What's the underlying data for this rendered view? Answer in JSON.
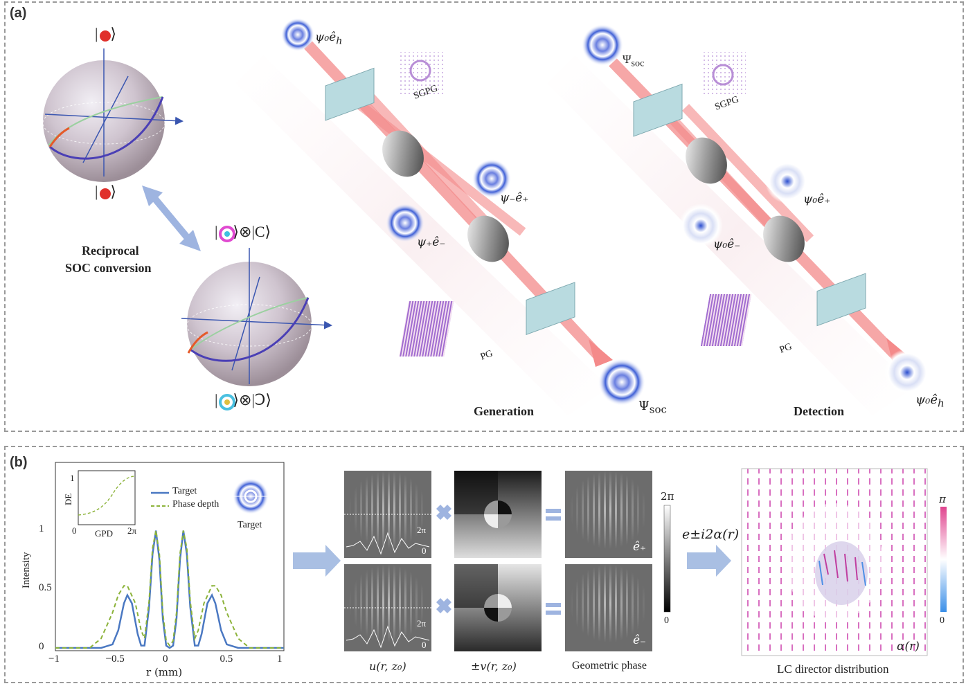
{
  "panel_a": {
    "label": "(a)",
    "ket_top": "|",
    "ket_bottom": "|",
    "ket_product_top": "⊗|",
    "ket_product_bottom": "⊗|",
    "conversion_label_line1": "Reciprocal",
    "conversion_label_line2": "SOC conversion",
    "generation": {
      "input_label": "ψ₀ê",
      "input_sub": "h",
      "sgpg_label": "SGPG",
      "minus_label": "ψ₋ê₊",
      "plus_label": "ψ₊ê₋",
      "pg_label": "PG",
      "output_label": "Ψ",
      "output_sub": "soc",
      "title": "Generation"
    },
    "detection": {
      "input_label": "Ψ",
      "input_sub": "soc",
      "sgpg_label": "SGPG",
      "plus_label": "ψ₀ê₊",
      "minus_label": "ψ₀ê₋",
      "pg_label": "PG",
      "output_label": "ψ₀ê",
      "output_sub": "h",
      "title": "Detection"
    }
  },
  "panel_b": {
    "label": "(b)",
    "plot": {
      "ylabel": "Intensity",
      "xlabel": "r (mm)",
      "xticks": [
        "−1",
        "−0.5",
        "0",
        "0.5",
        "1"
      ],
      "yticks": [
        "0",
        "0.5",
        "1"
      ],
      "legend_target": "Target",
      "legend_phase": "Phase depth",
      "target_thumb_label": "Target",
      "inset_ylabel": "DE",
      "inset_xlabel": "GPD",
      "inset_xticks": [
        "0",
        "2π"
      ],
      "inset_ytick": "1",
      "colors": {
        "target": "#4a78c2",
        "phase": "#8cb33a"
      }
    },
    "hologram_top_labels": [
      "2π",
      "0"
    ],
    "hologram_bottom_labels": [
      "2π",
      "0"
    ],
    "caption_u": "u(r, z₀)",
    "caption_v": "±v(r, z₀)",
    "caption_geo": "Geometric phase",
    "e_plus": "ê₊",
    "e_minus": "ê₋",
    "colorbar_top": "2π",
    "colorbar_bottom": "0",
    "exp_label": "e±i2α(r)",
    "lc_colorbar_top": "π",
    "lc_colorbar_bottom": "0",
    "alpha_label": "α(r)",
    "lc_caption": "LC director distribution"
  },
  "chart_data": {
    "type": "line",
    "xlabel": "r (mm)",
    "ylabel": "Intensity",
    "xlim": [
      -1,
      1
    ],
    "ylim": [
      0,
      1.05
    ],
    "series": [
      {
        "name": "Target",
        "x": [
          -1,
          -0.6,
          -0.5,
          -0.45,
          -0.4,
          -0.37,
          -0.33,
          -0.28,
          -0.25,
          -0.22,
          -0.18,
          -0.15,
          -0.12,
          -0.09,
          -0.06,
          -0.03,
          0,
          0.03,
          0.06,
          0.09,
          0.12,
          0.15,
          0.18,
          0.22,
          0.25,
          0.28,
          0.33,
          0.37,
          0.4,
          0.45,
          0.5,
          0.6,
          1
        ],
        "y": [
          0,
          0,
          0.03,
          0.15,
          0.38,
          0.45,
          0.38,
          0.12,
          0.02,
          0.02,
          0.35,
          0.8,
          1.0,
          0.75,
          0.25,
          0.02,
          0,
          0.02,
          0.25,
          0.75,
          1.0,
          0.8,
          0.35,
          0.02,
          0.02,
          0.12,
          0.38,
          0.45,
          0.38,
          0.15,
          0.03,
          0,
          0
        ]
      },
      {
        "name": "Phase depth",
        "x": [
          -1,
          -0.7,
          -0.6,
          -0.5,
          -0.45,
          -0.4,
          -0.37,
          -0.3,
          -0.25,
          -0.22,
          -0.18,
          -0.15,
          -0.12,
          -0.09,
          -0.06,
          -0.03,
          0,
          0.03,
          0.06,
          0.09,
          0.12,
          0.15,
          0.18,
          0.22,
          0.25,
          0.3,
          0.37,
          0.4,
          0.45,
          0.5,
          0.6,
          0.7,
          1
        ],
        "y": [
          0,
          0,
          0.08,
          0.3,
          0.45,
          0.53,
          0.53,
          0.38,
          0.15,
          0.08,
          0.4,
          0.85,
          1.0,
          0.8,
          0.3,
          0.06,
          0.02,
          0.06,
          0.3,
          0.8,
          1.0,
          0.85,
          0.4,
          0.08,
          0.15,
          0.38,
          0.53,
          0.53,
          0.45,
          0.3,
          0.08,
          0,
          0
        ]
      }
    ]
  }
}
